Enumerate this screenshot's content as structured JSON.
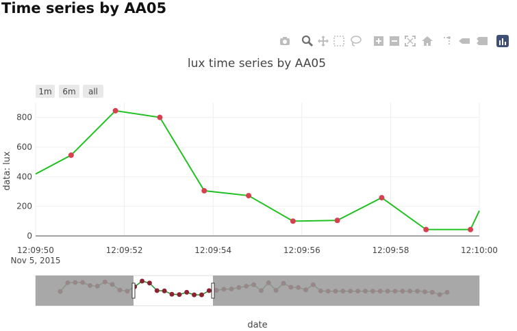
{
  "page": {
    "title": "Time series by AA05"
  },
  "modebar": {
    "icons": [
      "camera-icon",
      "zoom-icon",
      "pan-icon",
      "box-select-icon",
      "lasso-icon",
      "zoom-in-icon",
      "zoom-out-icon",
      "autoscale-icon",
      "reset-home-icon",
      "spike-lines-icon",
      "hover-closest-icon",
      "hover-compare-icon",
      "plotly-logo-icon"
    ],
    "color": "#bdbdbd",
    "active_color": "#6f6f6f"
  },
  "range_selector": {
    "buttons": [
      "1m",
      "6m",
      "all"
    ]
  },
  "colors": {
    "line": "#21c021",
    "marker": "#d6404f",
    "slider_line": "#1f8f1f",
    "slider_marker": "#8b2232",
    "slider_mask": "#999999",
    "grid": "#eeeeee"
  },
  "chart_data": {
    "type": "line",
    "title": "lux time series by AA05",
    "xlabel": "date",
    "ylabel": "data: lux",
    "date": "Nov 5, 2015",
    "x_ticks": [
      "12:09:50",
      "12:09:52",
      "12:09:54",
      "12:09:56",
      "12:09:58",
      "12:10:00"
    ],
    "y_ticks": [
      0,
      200,
      400,
      600,
      800
    ],
    "xlim": [
      "12:09:50",
      "12:10:00"
    ],
    "ylim": [
      0,
      900
    ],
    "grid": true,
    "series": [
      {
        "x": [
          "12:09:50.0",
          "12:09:50.8",
          "12:09:51.8",
          "12:09:52.8",
          "12:09:53.8",
          "12:09:54.8",
          "12:09:55.8",
          "12:09:56.8",
          "12:09:57.8",
          "12:09:58.8",
          "12:09:59.8",
          "12:10:00.0"
        ],
        "values": [
          418,
          545,
          845,
          800,
          305,
          272,
          100,
          105,
          258,
          43,
          43,
          170
        ]
      }
    ],
    "range_slider": {
      "values": [
        410,
        720,
        730,
        730,
        620,
        600,
        750,
        660,
        460,
        420,
        580,
        780,
        710,
        440,
        430,
        310,
        300,
        380,
        290,
        290,
        440,
        450,
        490,
        500,
        550,
        600,
        650,
        440,
        720,
        450,
        700,
        560,
        550,
        470,
        650,
        430,
        420,
        420,
        420,
        420,
        420,
        420,
        420,
        420,
        420,
        420,
        420,
        420,
        420,
        400,
        380,
        300,
        380
      ],
      "selected_range": [
        "12:09:50",
        "12:10:00"
      ]
    }
  }
}
